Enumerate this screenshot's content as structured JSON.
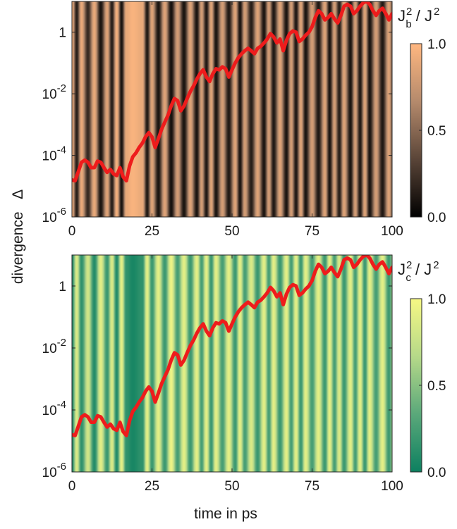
{
  "figure": {
    "xlabel": "time in ps",
    "ylabel": "divergence   Δ"
  },
  "chart_data": [
    {
      "type": "heatmap",
      "panel": "top",
      "colorbar": {
        "title_base": "J",
        "title_sub": "b",
        "title_pow": "2",
        "title_sep": " / J",
        "title_den_pow": "2",
        "ticks": [
          "0.0",
          "0.5",
          "1.0"
        ],
        "range": [
          0,
          1
        ],
        "colors": [
          "#000000",
          "#5a4538",
          "#b58a6c",
          "#ffb780"
        ]
      },
      "x_ticks": [
        "0",
        "25",
        "50",
        "75",
        "100"
      ],
      "xlim": [
        0,
        100
      ],
      "y_scale": "log",
      "ylim": [
        1e-06,
        10
      ],
      "y_ticks": [
        {
          "base": "1",
          "exp": ""
        },
        {
          "base": "10",
          "exp": "-2"
        },
        {
          "base": "10",
          "exp": "-4"
        },
        {
          "base": "10",
          "exp": "-6"
        }
      ],
      "background_stripes": {
        "t": [
          0,
          1.5,
          3,
          5,
          7,
          9,
          11,
          12.5,
          14,
          15.5,
          17,
          19,
          22,
          23.5,
          25,
          27,
          29,
          31,
          33,
          35,
          37,
          39,
          40.5,
          42,
          43.5,
          45,
          47,
          49,
          51,
          52.5,
          54,
          56,
          58,
          60,
          61.5,
          63,
          65,
          67,
          68.5,
          70,
          71.5,
          73,
          75,
          77,
          79,
          80.5,
          82,
          83.5,
          85,
          87,
          88.5,
          90,
          91.5,
          93,
          95,
          97,
          99,
          100
        ],
        "value": [
          0.95,
          0.15,
          0.9,
          0.2,
          0.9,
          0.1,
          0.85,
          0.15,
          0.95,
          0.1,
          0.9,
          0.97,
          0.9,
          0.12,
          0.85,
          0.1,
          0.85,
          0.08,
          0.8,
          0.1,
          0.85,
          0.1,
          0.8,
          0.12,
          0.85,
          0.1,
          0.8,
          0.12,
          0.85,
          0.1,
          0.8,
          0.15,
          0.85,
          0.1,
          0.8,
          0.12,
          0.85,
          0.1,
          0.8,
          0.12,
          0.85,
          0.1,
          0.8,
          0.12,
          0.85,
          0.1,
          0.8,
          0.15,
          0.85,
          0.1,
          0.8,
          0.12,
          0.85,
          0.1,
          0.8,
          0.12,
          0.85,
          0.5
        ]
      },
      "series": [
        {
          "color": "#ee1c1c",
          "x": [
            0,
            1,
            2,
            3,
            4,
            5,
            6,
            7,
            8,
            9,
            10,
            11,
            12,
            13,
            14,
            15,
            16,
            17,
            18,
            19,
            20,
            21,
            22,
            23,
            24,
            25,
            26,
            27,
            28,
            29,
            30,
            31,
            32,
            33,
            34,
            35,
            36,
            37,
            38,
            39,
            40,
            41,
            42,
            43,
            44,
            45,
            46,
            47,
            48,
            49,
            50,
            51,
            52,
            53,
            54,
            55,
            56,
            57,
            58,
            59,
            60,
            61,
            62,
            63,
            64,
            65,
            66,
            67,
            68,
            69,
            70,
            71,
            72,
            73,
            74,
            75,
            76,
            77,
            78,
            79,
            80,
            81,
            82,
            83,
            84,
            85,
            86,
            87,
            88,
            89,
            90,
            91,
            92,
            93,
            94,
            95,
            96,
            97,
            98,
            99,
            100
          ],
          "y": [
            1.6e-05,
            1.5e-05,
            3e-05,
            6e-05,
            7e-05,
            6e-05,
            4e-05,
            4e-05,
            6.5e-05,
            6e-05,
            4e-05,
            2.8e-05,
            3.5e-05,
            2.5e-05,
            2.2e-05,
            4e-05,
            2e-05,
            1.5e-05,
            4.5e-05,
            9e-05,
            0.00012,
            0.00018,
            0.00025,
            0.0004,
            0.00055,
            0.0004,
            0.00018,
            0.00035,
            0.0007,
            0.0012,
            0.002,
            0.004,
            0.007,
            0.006,
            0.0028,
            0.004,
            0.007,
            0.012,
            0.018,
            0.03,
            0.045,
            0.06,
            0.035,
            0.025,
            0.045,
            0.065,
            0.06,
            0.075,
            0.065,
            0.035,
            0.06,
            0.1,
            0.15,
            0.2,
            0.25,
            0.3,
            0.25,
            0.2,
            0.3,
            0.35,
            0.45,
            0.6,
            0.9,
            0.7,
            0.45,
            0.6,
            0.25,
            0.55,
            0.9,
            1.1,
            1.0,
            0.5,
            0.6,
            0.8,
            1.0,
            1.5,
            3,
            5,
            4,
            2.5,
            3,
            4,
            2.7,
            2,
            3.5,
            7,
            8,
            7,
            4,
            5,
            7,
            9,
            10,
            8,
            5,
            3.5,
            5,
            6,
            4,
            2.5,
            4
          ]
        }
      ]
    },
    {
      "type": "heatmap",
      "panel": "bottom",
      "colorbar": {
        "title_base": "J",
        "title_sub": "c",
        "title_pow": "2",
        "title_sep": " / J",
        "title_den_pow": "2",
        "ticks": [
          "0.0",
          "0.5",
          "1.0"
        ],
        "range": [
          0,
          1
        ],
        "colors": [
          "#0d8060",
          "#5aa87a",
          "#b6d989",
          "#f6f884"
        ]
      },
      "x_ticks": [
        "0",
        "25",
        "50",
        "75",
        "100"
      ],
      "xlim": [
        0,
        100
      ],
      "y_scale": "log",
      "ylim": [
        1e-06,
        10
      ],
      "y_ticks": [
        {
          "base": "1",
          "exp": ""
        },
        {
          "base": "10",
          "exp": "-2"
        },
        {
          "base": "10",
          "exp": "-4"
        },
        {
          "base": "10",
          "exp": "-6"
        }
      ],
      "background_stripes": {
        "t": [
          0,
          1.5,
          3,
          5,
          7,
          9,
          11,
          12.5,
          14,
          15.5,
          17,
          19,
          22,
          23.5,
          25,
          27,
          29,
          31,
          33,
          35,
          37,
          39,
          40.5,
          42,
          43.5,
          45,
          47,
          49,
          51,
          52.5,
          54,
          56,
          58,
          60,
          61.5,
          63,
          65,
          67,
          68.5,
          70,
          71.5,
          73,
          75,
          77,
          79,
          80.5,
          82,
          83.5,
          85,
          87,
          88.5,
          90,
          91.5,
          93,
          95,
          97,
          99,
          100
        ],
        "value": [
          0.1,
          0.85,
          0.15,
          0.8,
          0.1,
          0.9,
          0.2,
          0.85,
          0.1,
          0.9,
          0.15,
          0.05,
          0.15,
          0.9,
          0.2,
          0.9,
          0.2,
          0.95,
          0.25,
          0.9,
          0.2,
          0.9,
          0.25,
          0.9,
          0.2,
          0.9,
          0.25,
          0.9,
          0.2,
          0.9,
          0.25,
          0.85,
          0.2,
          0.9,
          0.25,
          0.9,
          0.2,
          0.9,
          0.25,
          0.9,
          0.2,
          0.9,
          0.25,
          0.9,
          0.2,
          0.9,
          0.25,
          0.85,
          0.2,
          0.9,
          0.25,
          0.9,
          0.2,
          0.9,
          0.25,
          0.9,
          0.2,
          0.5
        ]
      },
      "series": [
        {
          "color": "#ee1c1c",
          "x": [
            0,
            1,
            2,
            3,
            4,
            5,
            6,
            7,
            8,
            9,
            10,
            11,
            12,
            13,
            14,
            15,
            16,
            17,
            18,
            19,
            20,
            21,
            22,
            23,
            24,
            25,
            26,
            27,
            28,
            29,
            30,
            31,
            32,
            33,
            34,
            35,
            36,
            37,
            38,
            39,
            40,
            41,
            42,
            43,
            44,
            45,
            46,
            47,
            48,
            49,
            50,
            51,
            52,
            53,
            54,
            55,
            56,
            57,
            58,
            59,
            60,
            61,
            62,
            63,
            64,
            65,
            66,
            67,
            68,
            69,
            70,
            71,
            72,
            73,
            74,
            75,
            76,
            77,
            78,
            79,
            80,
            81,
            82,
            83,
            84,
            85,
            86,
            87,
            88,
            89,
            90,
            91,
            92,
            93,
            94,
            95,
            96,
            97,
            98,
            99,
            100
          ],
          "y": [
            1.6e-05,
            1.5e-05,
            3e-05,
            6e-05,
            7e-05,
            6e-05,
            4e-05,
            4e-05,
            6.5e-05,
            6e-05,
            4e-05,
            2.8e-05,
            3.5e-05,
            2.5e-05,
            2.2e-05,
            4e-05,
            2e-05,
            1.5e-05,
            4.5e-05,
            9e-05,
            0.00012,
            0.00018,
            0.00025,
            0.0004,
            0.00055,
            0.0004,
            0.00018,
            0.00035,
            0.0007,
            0.0012,
            0.002,
            0.004,
            0.007,
            0.006,
            0.0028,
            0.004,
            0.007,
            0.012,
            0.018,
            0.03,
            0.045,
            0.06,
            0.035,
            0.025,
            0.045,
            0.065,
            0.06,
            0.075,
            0.065,
            0.035,
            0.06,
            0.1,
            0.15,
            0.2,
            0.25,
            0.3,
            0.25,
            0.2,
            0.3,
            0.35,
            0.45,
            0.6,
            0.9,
            0.7,
            0.45,
            0.6,
            0.25,
            0.55,
            0.9,
            1.1,
            1.0,
            0.5,
            0.6,
            0.8,
            1.0,
            1.5,
            3,
            5,
            4,
            2.5,
            3,
            4,
            2.7,
            2,
            3.5,
            7,
            8,
            7,
            4,
            5,
            7,
            9,
            10,
            8,
            5,
            3.5,
            5,
            6,
            4,
            2.5,
            4
          ]
        }
      ]
    }
  ]
}
